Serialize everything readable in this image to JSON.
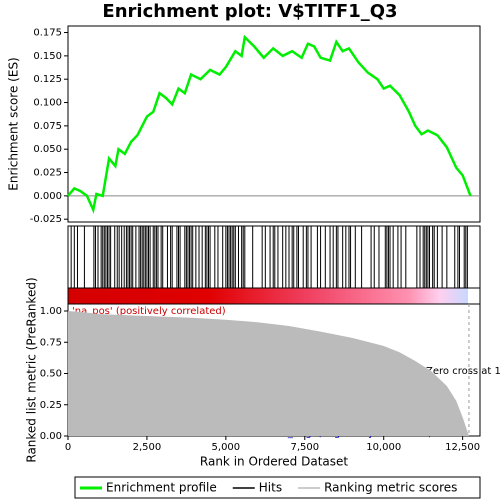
{
  "title": "Enrichment plot: V$TITF1_Q3",
  "legend": [
    {
      "name": "Enrichment profile",
      "color": "#00ee00"
    },
    {
      "name": "Hits",
      "color": "#000000"
    },
    {
      "name": "Ranking metric scores",
      "color": "#bbbbbb"
    }
  ],
  "chart_data": [
    {
      "type": "line",
      "y_label": "Enrichment score (ES)",
      "color": "#00ee00",
      "xlim": [
        0,
        13050
      ],
      "ylim": [
        -0.028,
        0.182
      ],
      "yticks": [
        -0.025,
        {
          "value": 0,
          "label": "0.000"
        },
        0.025,
        {
          "value": 0.05,
          "label": "0.050"
        },
        0.075,
        {
          "value": 0.1,
          "label": "0.100"
        },
        0.125,
        {
          "value": 0.15,
          "label": "0.150"
        },
        0.175
      ],
      "x": [
        0,
        200,
        400,
        600,
        800,
        900,
        1100,
        1200,
        1300,
        1500,
        1600,
        1800,
        2000,
        2200,
        2500,
        2700,
        2900,
        3100,
        3300,
        3500,
        3700,
        3900,
        4200,
        4500,
        4800,
        5000,
        5300,
        5500,
        5600,
        5900,
        6200,
        6500,
        6800,
        7100,
        7400,
        7600,
        7800,
        8000,
        8300,
        8500,
        8700,
        8900,
        9200,
        9500,
        9800,
        10000,
        10200,
        10500,
        10800,
        11000,
        11200,
        11400,
        11700,
        12000,
        12300,
        12500,
        12750
      ],
      "values": [
        0,
        0.008,
        0.005,
        0.0,
        -0.015,
        0.002,
        0.0,
        0.02,
        0.04,
        0.032,
        0.05,
        0.045,
        0.058,
        0.065,
        0.085,
        0.09,
        0.11,
        0.105,
        0.098,
        0.115,
        0.11,
        0.13,
        0.125,
        0.135,
        0.13,
        0.138,
        0.155,
        0.15,
        0.17,
        0.16,
        0.148,
        0.158,
        0.15,
        0.155,
        0.148,
        0.163,
        0.16,
        0.148,
        0.145,
        0.165,
        0.155,
        0.158,
        0.143,
        0.132,
        0.125,
        0.115,
        0.118,
        0.108,
        0.09,
        0.075,
        0.066,
        0.07,
        0.065,
        0.052,
        0.03,
        0.022,
        0.0
      ]
    },
    {
      "type": "rug",
      "color": "#000000",
      "xlim": [
        0,
        13050
      ],
      "x": [
        100,
        200,
        300,
        520,
        820,
        870,
        950,
        1050,
        1100,
        1150,
        1200,
        1250,
        1300,
        1350,
        1480,
        1560,
        1620,
        1700,
        1780,
        1850,
        1900,
        1950,
        2000,
        2050,
        2150,
        2250,
        2300,
        2350,
        2400,
        2450,
        2500,
        2550,
        2600,
        2700,
        2750,
        2800,
        2850,
        2950,
        3000,
        3150,
        3250,
        3300,
        3450,
        3500,
        3550,
        3700,
        3750,
        3800,
        3850,
        3900,
        3950,
        4050,
        4150,
        4250,
        4350,
        4400,
        4450,
        4500,
        4650,
        4750,
        4900,
        5000,
        5050,
        5100,
        5150,
        5200,
        5250,
        5300,
        5400,
        5500,
        5550,
        5600,
        5850,
        6150,
        6250,
        6400,
        6500,
        6550,
        6650,
        6800,
        6900,
        7000,
        7100,
        7150,
        7250,
        7300,
        7450,
        7550,
        7600,
        7700,
        7900,
        8000,
        8150,
        8300,
        8400,
        8500,
        8550,
        8700,
        8800,
        8900,
        8950,
        9100,
        9300,
        9600,
        9700,
        9850,
        10050,
        10100,
        10150,
        10200,
        10300,
        10450,
        10550,
        10700,
        11050,
        11150,
        11250,
        11300,
        11350,
        11400,
        11450,
        11550,
        11600,
        11700,
        11850,
        12000,
        12250,
        12350,
        12400,
        12550,
        12600,
        12650
      ]
    },
    {
      "type": "area",
      "color": "#bbbbbb",
      "x_label": "Rank in Ordered Dataset",
      "y_label": "Ranked list metric (PreRanked)",
      "xlim": [
        0,
        13050
      ],
      "ylim": [
        0,
        1.056
      ],
      "xticks": [
        0,
        {
          "value": 2500,
          "label": "2,500"
        },
        {
          "value": 5000,
          "label": "5,000"
        },
        {
          "value": 7500,
          "label": "7,500"
        },
        {
          "value": 10000,
          "label": "10,000"
        },
        {
          "value": 12500,
          "label": "12,500"
        }
      ],
      "yticks": [
        {
          "value": 0,
          "label": "0.00"
        },
        0.25,
        {
          "value": 0.5,
          "label": "0.50"
        },
        0.75,
        {
          "value": 1,
          "label": "1.00"
        }
      ],
      "x": [
        0,
        500,
        1000,
        2000,
        3000,
        4000,
        5000,
        6000,
        7000,
        8000,
        9000,
        10000,
        10500,
        11000,
        11500,
        12000,
        12300,
        12500,
        12700
      ],
      "values": [
        1.0,
        0.99,
        0.975,
        0.965,
        0.955,
        0.945,
        0.93,
        0.91,
        0.88,
        0.835,
        0.785,
        0.72,
        0.67,
        0.6,
        0.52,
        0.4,
        0.28,
        0.15,
        0.0
      ],
      "pos_label": "'na_pos' (positively correlated)",
      "neg_label": "'na_neg' (negatively correlated)",
      "zero_cross_label": "Zero cross at 1"
    }
  ]
}
